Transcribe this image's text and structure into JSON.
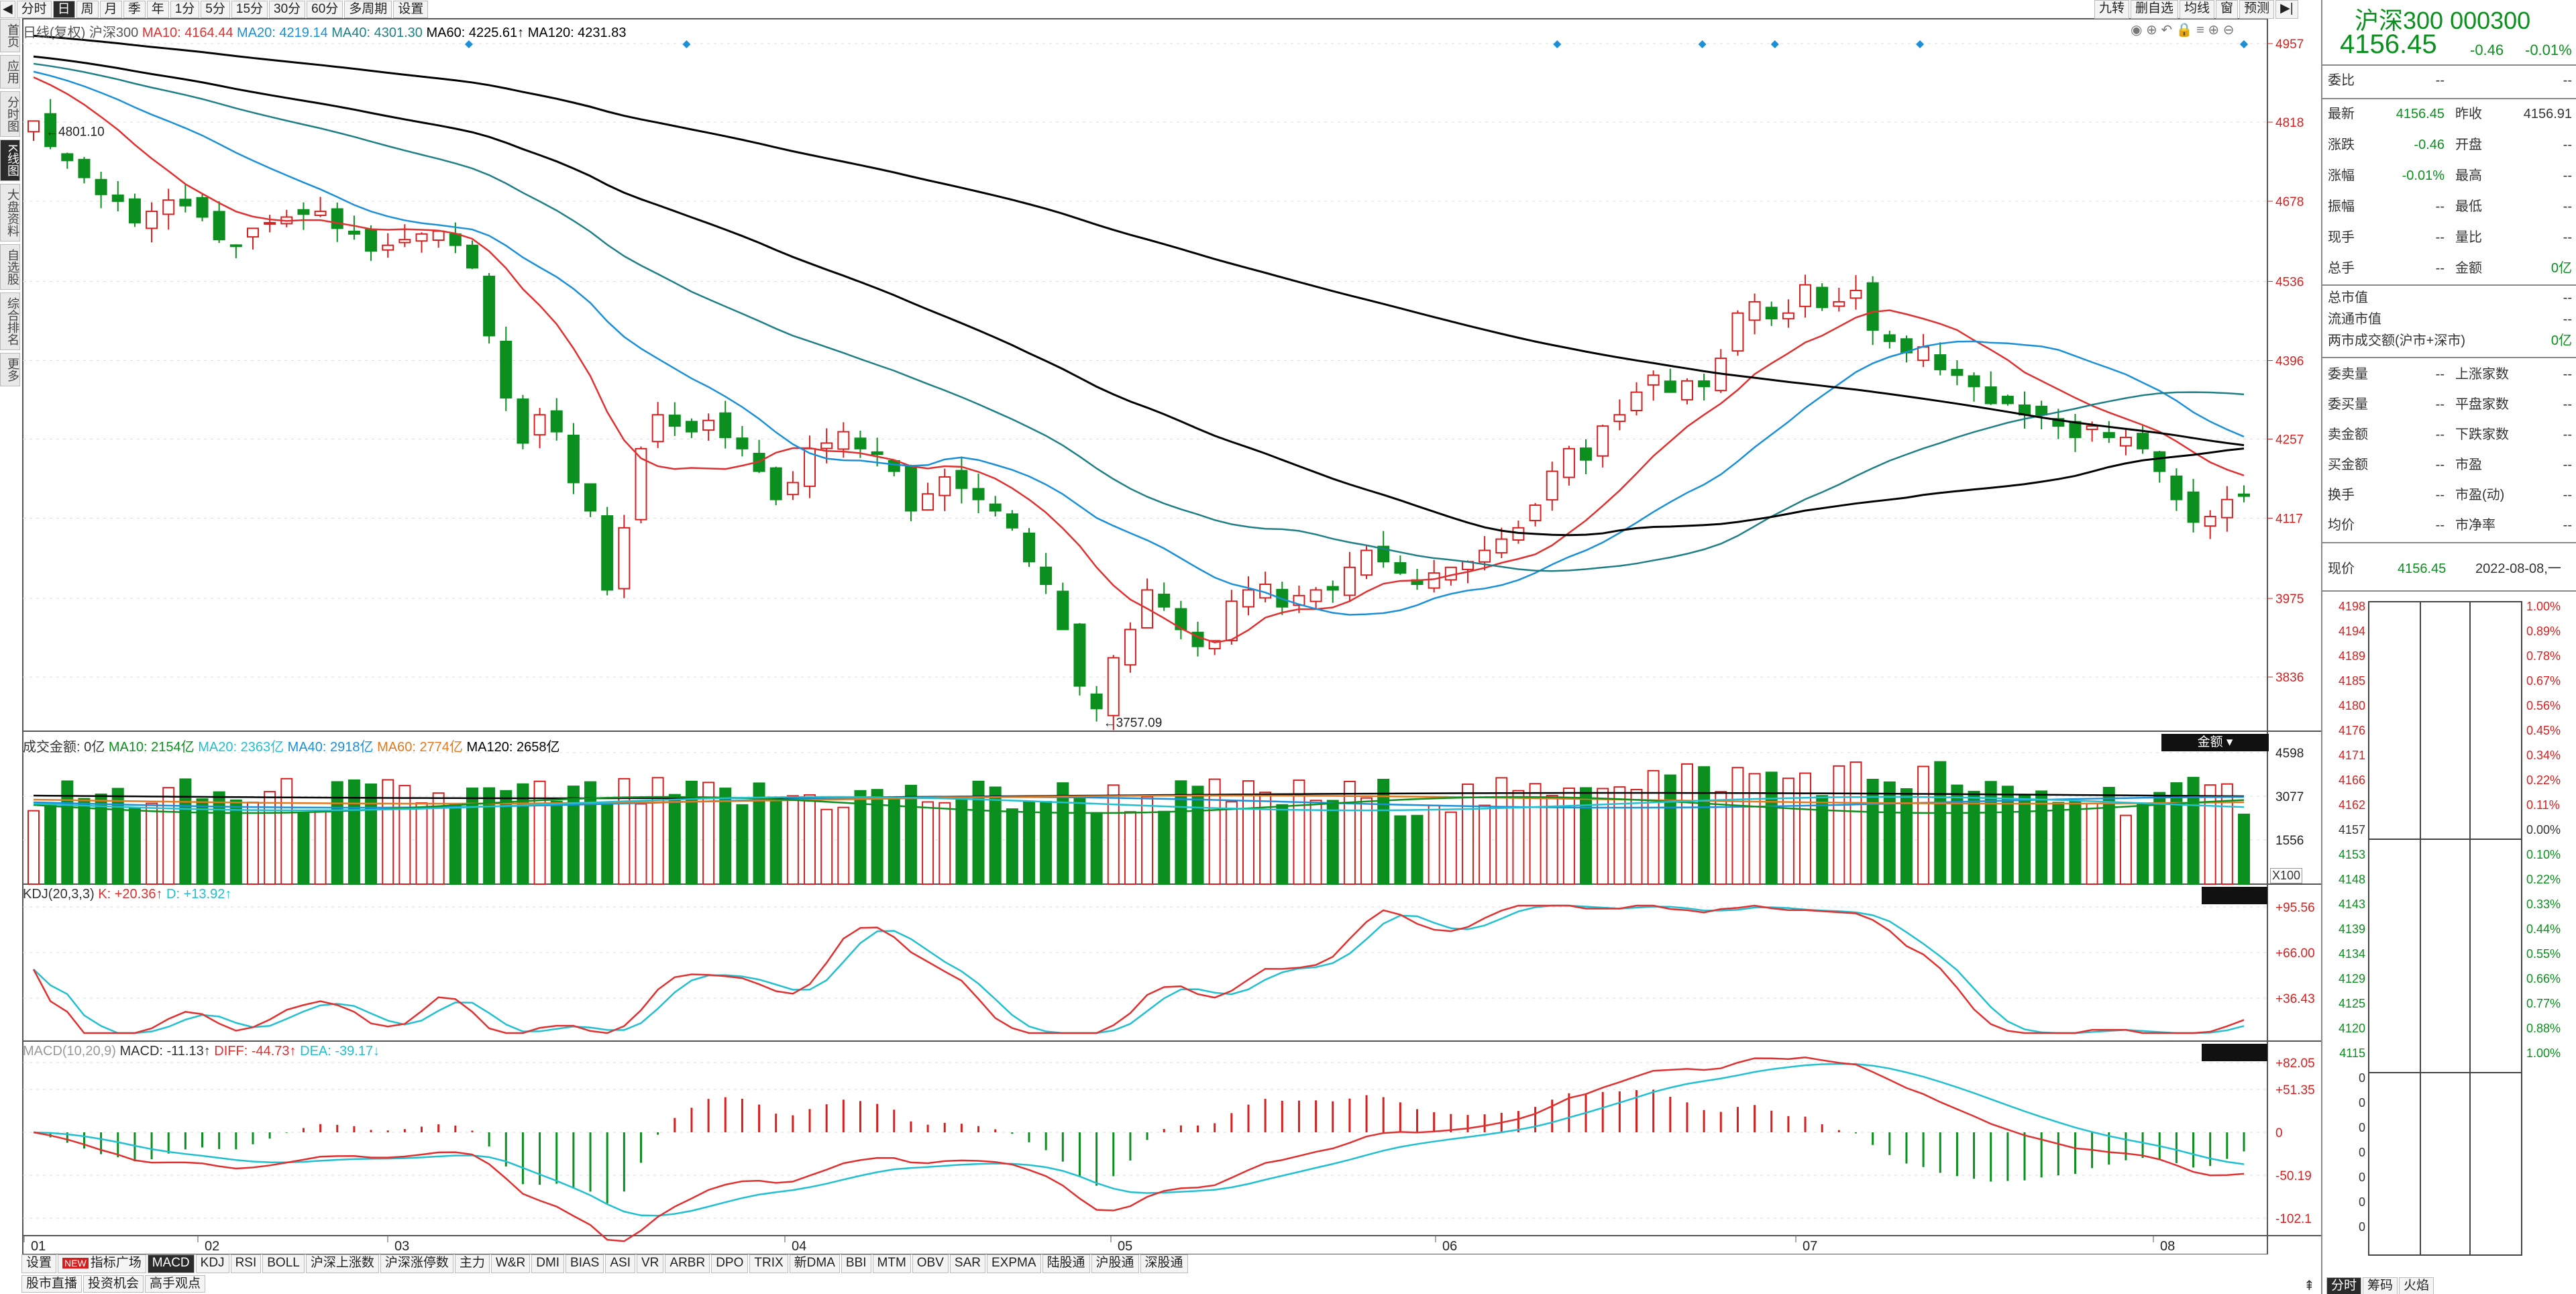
{
  "toolbar": {
    "items": [
      "分时",
      "日",
      "周",
      "月",
      "季",
      "年",
      "1分",
      "5分",
      "15分",
      "30分",
      "60分",
      "多周期",
      "设置"
    ],
    "active": "日",
    "right": [
      "九转",
      "删自选",
      "均线",
      "窗",
      "预测"
    ]
  },
  "leftnav": {
    "items": [
      "首页",
      "应用",
      "分时图",
      "K线图",
      "大盘资料",
      "自选股",
      "综合排名",
      "更多"
    ],
    "active": "K线图"
  },
  "main_legend": {
    "name": "日线(复权)",
    "code": "沪深300",
    "ma10": "MA10: 4164.44",
    "ma20": "MA20: 4219.14",
    "ma40": "MA40: 4301.30",
    "ma60": "MA60: 4225.61↑",
    "ma120": "MA120: 4231.83"
  },
  "vol_legend": {
    "label": "成交金额: 0亿",
    "ma10": "MA10: 2154亿",
    "ma20": "MA20: 2363亿",
    "ma40": "MA40: 2918亿",
    "ma60": "MA60: 2774亿",
    "ma120": "MA120: 2658亿",
    "badge": "金额"
  },
  "kdj_legend": {
    "label": "KDJ(20,3,3)",
    "k": "K: +20.36↑",
    "d": "D: +13.92↑"
  },
  "macd_legend": {
    "label": "MACD(10,20,9)",
    "macd": "MACD: -11.13↑",
    "diff": "DIFF: -44.73↑",
    "dea": "DEA: -39.17↓"
  },
  "colors": {
    "up": "#d62020",
    "down": "#0b8f1e",
    "ma10": "#e03030",
    "ma20": "#1a90d8",
    "ma40": "#1f7f86",
    "ma60": "#e07a20",
    "ma120": "#000000",
    "k": "#e03030",
    "d": "#20c0d0"
  },
  "bottom_tabs": [
    "设置",
    "指标广场",
    "MACD",
    "KDJ",
    "RSI",
    "BOLL",
    "沪深上涨数",
    "沪深涨停数",
    "主力",
    "W&R",
    "DMI",
    "BIAS",
    "ASI",
    "VR",
    "ARBR",
    "DPO",
    "TRIX",
    "新DMA",
    "BBI",
    "MTM",
    "OBV",
    "SAR",
    "EXPMA",
    "陆股通",
    "沪股通",
    "深股通"
  ],
  "bottom_tabs_active": "MACD",
  "bottom_tabs2": [
    "股市直播",
    "投资机会",
    "高手观点"
  ],
  "new_badge": "NEW",
  "x100": "X100",
  "quote": {
    "title": "沪深300 000300",
    "price": "4156.45",
    "change": "-0.46",
    "pct": "-0.01%"
  },
  "panel": {
    "weibi": {
      "label": "委比",
      "value": "--",
      "value2": "--"
    },
    "rows1": [
      {
        "l1": "最新",
        "v1": "4156.45",
        "l2": "昨收",
        "v2": "4156.91",
        "c1": "grn"
      },
      {
        "l1": "涨跌",
        "v1": "-0.46",
        "l2": "开盘",
        "v2": "--",
        "c1": "grn"
      },
      {
        "l1": "涨幅",
        "v1": "-0.01%",
        "l2": "最高",
        "v2": "--",
        "c1": "grn"
      },
      {
        "l1": "振幅",
        "v1": "--",
        "l2": "最低",
        "v2": "--",
        "c1": ""
      },
      {
        "l1": "现手",
        "v1": "--",
        "l2": "量比",
        "v2": "--",
        "c1": ""
      },
      {
        "l1": "总手",
        "v1": "--",
        "l2": "金额",
        "v2": "0亿",
        "c1": ""
      }
    ],
    "rows2": [
      {
        "l": "总市值",
        "v": "--"
      },
      {
        "l": "流通市值",
        "v": "--"
      },
      {
        "l": "两市成交额(沪市+深市)",
        "v": "0亿"
      }
    ],
    "rows3": [
      {
        "l1": "委卖量",
        "v1": "--",
        "l2": "上涨家数",
        "v2": "--"
      },
      {
        "l1": "委买量",
        "v1": "--",
        "l2": "平盘家数",
        "v2": "--"
      },
      {
        "l1": "卖金额",
        "v1": "--",
        "l2": "下跌家数",
        "v2": "--"
      },
      {
        "l1": "买金额",
        "v1": "--",
        "l2": "市盈",
        "v2": "--"
      },
      {
        "l1": "换手",
        "v1": "--",
        "l2": "市盈(动)",
        "v2": "--"
      },
      {
        "l1": "均价",
        "v1": "--",
        "l2": "市净率",
        "v2": "--"
      }
    ],
    "now": {
      "label": "现价",
      "price": "4156.45",
      "date": "2022-08-08,一"
    },
    "mini_left": [
      "4198",
      "4194",
      "4189",
      "4185",
      "4180",
      "4176",
      "4171",
      "4166",
      "4162",
      "4157",
      "4153",
      "4148",
      "4143",
      "4139",
      "4134",
      "4129",
      "4125",
      "4120",
      "4115",
      "0",
      "0",
      "0",
      "0",
      "0",
      "0",
      "0"
    ],
    "mini_right": [
      "1.00%",
      "0.89%",
      "0.78%",
      "0.67%",
      "0.56%",
      "0.45%",
      "0.34%",
      "0.22%",
      "0.11%",
      "0.00%",
      "0.10%",
      "0.22%",
      "0.33%",
      "0.44%",
      "0.55%",
      "0.66%",
      "0.77%",
      "0.88%",
      "1.00%"
    ],
    "tabs": [
      "分时",
      "筹码",
      "火焰"
    ]
  },
  "chart_data": {
    "type": "candlestick",
    "title": "沪深300 日线(复权)",
    "x_labels": [
      "01",
      "02",
      "03",
      "04",
      "05",
      "06",
      "07",
      "08"
    ],
    "y_ticks": [
      4957,
      4818,
      4678,
      4536,
      4396,
      4257,
      4117,
      3975,
      3836
    ],
    "ylim": [
      3740,
      4970
    ],
    "annotations": {
      "high": "4801.10",
      "low": "3757.09"
    },
    "vol_ticks": [
      "4598",
      "3077",
      "1556"
    ],
    "kdj_ticks": [
      "+95.56",
      "+66.00",
      "+36.43"
    ],
    "macd_ticks": [
      "+82.05",
      "+51.35",
      "0",
      "-50.19",
      "-102.1"
    ],
    "closes": [
      4820,
      4775,
      4750,
      4720,
      4690,
      4678,
      4640,
      4660,
      4680,
      4670,
      4650,
      4610,
      4600,
      4630,
      4640,
      4650,
      4655,
      4660,
      4630,
      4620,
      4590,
      4600,
      4610,
      4620,
      4625,
      4600,
      4560,
      4440,
      4330,
      4250,
      4300,
      4270,
      4180,
      4130,
      3990,
      4100,
      4240,
      4300,
      4280,
      4270,
      4290,
      4260,
      4240,
      4200,
      4150,
      4180,
      4240,
      4250,
      4270,
      4240,
      4230,
      4200,
      4130,
      4160,
      4190,
      4170,
      4150,
      4130,
      4100,
      4040,
      4000,
      3920,
      3820,
      3780,
      3870,
      3920,
      3990,
      3960,
      3920,
      3890,
      3900,
      3970,
      3990,
      4000,
      3960,
      3980,
      3990,
      3990,
      4030,
      4060,
      4040,
      4020,
      4000,
      4020,
      4030,
      4040,
      4060,
      4080,
      4100,
      4140,
      4200,
      4240,
      4220,
      4280,
      4300,
      4340,
      4370,
      4340,
      4360,
      4350,
      4400,
      4480,
      4500,
      4470,
      4480,
      4530,
      4490,
      4500,
      4520,
      4450,
      4430,
      4410,
      4420,
      4380,
      4370,
      4350,
      4320,
      4320,
      4300,
      4300,
      4280,
      4260,
      4280,
      4260,
      4260,
      4240,
      4200,
      4150,
      4110,
      4120,
      4150,
      4156
    ],
    "ma10_end": 4164.44,
    "ma20_end": 4219.14,
    "ma40_end": 4301.3,
    "ma60_end": 4225.61,
    "ma120_end": 4231.83
  }
}
